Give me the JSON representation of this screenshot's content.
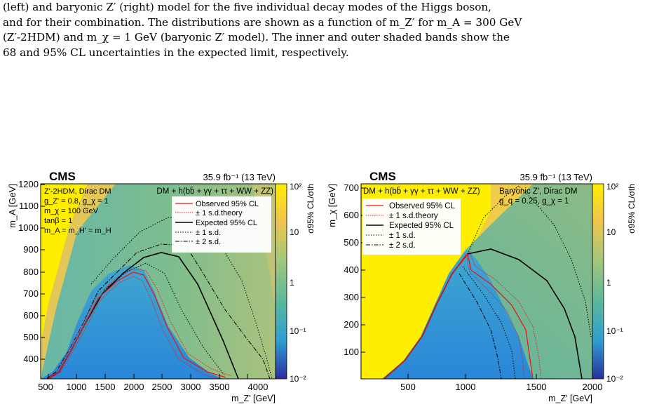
{
  "caption": {
    "line1": "(left) and baryonic Z′ (right) model for the five individual decay modes of the Higgs boson,",
    "line2": "and for their combination. The distributions are shown as a function of m_Z′ for m_A = 300 GeV",
    "line3": "(Z′-2HDM) and m_χ = 1 GeV (baryonic Z′ model). The inner and outer shaded bands show the",
    "line4": "68 and 95% CL uncertainties in the expected limit, respectively."
  },
  "left_plot": {
    "cms_label": "CMS",
    "lumi": "35.9 fb⁻¹ (13 TeV)",
    "process": "DM + h(bb̄ + γγ + ττ + WW + ZZ)",
    "model_lines": [
      "Z'-2HDM, Dirac DM",
      "g_Z' = 0.8, g_χ = 1",
      "m_χ = 100 GeV",
      "tanβ = 1",
      "m_A = m_H' = m_H"
    ],
    "ylabel": "m_A [GeV]",
    "xlabel": "m_Z' [GeV]",
    "zlabel": "σ95% CL/σth",
    "x_ticks": [
      "500",
      "1000",
      "1500",
      "2000",
      "2500",
      "3000",
      "3500",
      "4000"
    ],
    "y_ticks": [
      "400",
      "500",
      "600",
      "700",
      "800",
      "900",
      "1000",
      "1100",
      "1200"
    ],
    "z_ticks": [
      "10²",
      "10",
      "1",
      "10⁻¹",
      "10⁻²"
    ],
    "legend": [
      "Observed 95% CL",
      "± 1 s.d.theory",
      "Expected 95% CL",
      "± 1 s.d.",
      "± 2 s.d."
    ]
  },
  "right_plot": {
    "cms_label": "CMS",
    "lumi": "35.9 fb⁻¹ (13 TeV)",
    "process": "DM + h(bb̄ + γγ + ττ + WW + ZZ)",
    "model_lines": [
      "Baryonic Z', Dirac DM",
      "g_q = 0.25, g_χ = 1"
    ],
    "ylabel": "m_χ [GeV]",
    "xlabel": "m_Z' [GeV]",
    "zlabel": "σ95% CL/σth",
    "x_ticks": [
      "500",
      "1000",
      "1500",
      "2000"
    ],
    "y_ticks": [
      "100",
      "200",
      "300",
      "400",
      "500",
      "600",
      "700"
    ],
    "z_ticks": [
      "10²",
      "10",
      "1",
      "10⁻¹",
      "10⁻²"
    ],
    "legend": [
      "Observed 95% CL",
      "± 1 s.d.theory",
      "Expected 95% CL",
      "± 1 s.d.",
      "± 2 s.d."
    ]
  },
  "colors": {
    "observed": "#e41a1c",
    "expected": "#000000",
    "high": "#ffee00",
    "mid": "#6db884",
    "low": "#2c7fd6"
  }
}
